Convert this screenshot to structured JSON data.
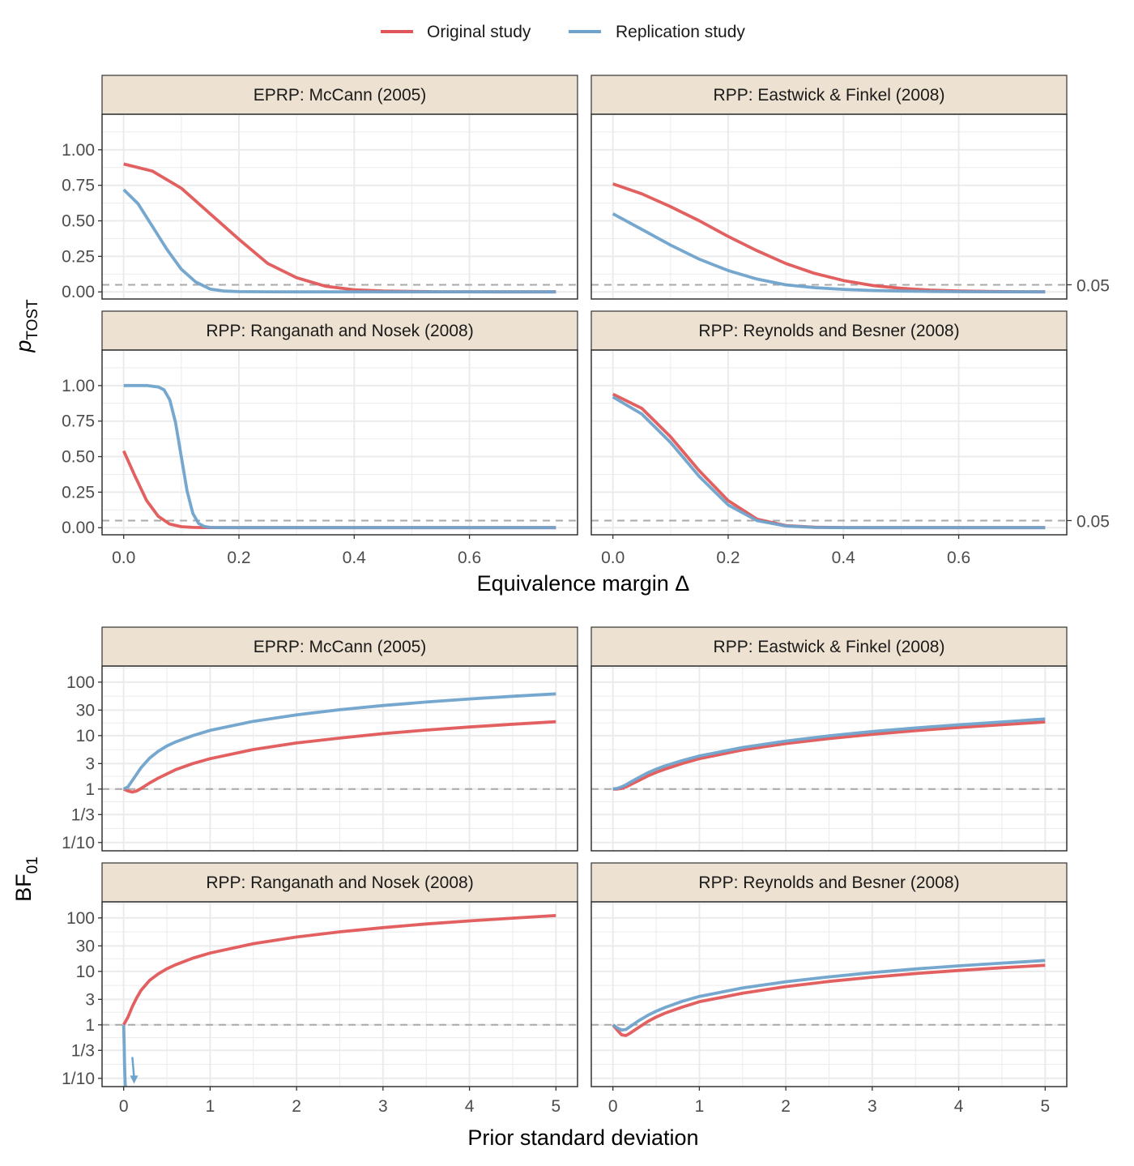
{
  "legend": {
    "items": [
      {
        "label": "Original study",
        "color": "#e15759"
      },
      {
        "label": "Replication study",
        "color": "#6fa3cc"
      }
    ]
  },
  "colors": {
    "original": "#e15759",
    "replication": "#6fa3cc",
    "strip": "#ede1d1",
    "reference": "#a9a9a9",
    "grid": "#ebebeb"
  },
  "chart_data": [
    {
      "type": "line",
      "section": "tost",
      "xlabel": "Equivalence margin Δ",
      "ylabel": {
        "main": "p",
        "sub": "TOST"
      },
      "xlim": [
        -0.0375,
        0.7875
      ],
      "ylim": [
        -0.05,
        1.25
      ],
      "x_ticks": [
        0.0,
        0.2,
        0.4,
        0.6
      ],
      "x_tick_labels": [
        "0.0",
        "0.2",
        "0.4",
        "0.6"
      ],
      "y_ticks": [
        0,
        0.25,
        0.5,
        0.75,
        1.0
      ],
      "y_tick_labels": [
        "0.00",
        "0.25",
        "0.50",
        "0.75",
        "1.00"
      ],
      "reference_line": 0.05,
      "reference_label": "0.05",
      "grid": true,
      "panels": [
        {
          "title": "EPRP: McCann (2005)",
          "series": [
            {
              "name": "Original study",
              "x": [
                0,
                0.05,
                0.1,
                0.15,
                0.2,
                0.25,
                0.3,
                0.35,
                0.4,
                0.45,
                0.5,
                0.55,
                0.6,
                0.65,
                0.7,
                0.75
              ],
              "y": [
                0.9,
                0.85,
                0.73,
                0.55,
                0.37,
                0.2,
                0.1,
                0.04,
                0.015,
                0.006,
                0.003,
                0.001,
                0.0005,
                0.0002,
                0.0001,
                0.0
              ]
            },
            {
              "name": "Replication study",
              "x": [
                0,
                0.025,
                0.05,
                0.075,
                0.1,
                0.125,
                0.15,
                0.175,
                0.2,
                0.25,
                0.3,
                0.4,
                0.5,
                0.6,
                0.75
              ],
              "y": [
                0.72,
                0.62,
                0.46,
                0.3,
                0.16,
                0.07,
                0.02,
                0.006,
                0.002,
                0.0005,
                0.0001,
                0,
                0,
                0,
                0
              ]
            }
          ]
        },
        {
          "title": "RPP: Eastwick & Finkel (2008)",
          "series": [
            {
              "name": "Original study",
              "x": [
                0,
                0.05,
                0.1,
                0.15,
                0.2,
                0.25,
                0.3,
                0.35,
                0.4,
                0.45,
                0.5,
                0.55,
                0.6,
                0.65,
                0.7,
                0.75
              ],
              "y": [
                0.76,
                0.69,
                0.6,
                0.5,
                0.39,
                0.29,
                0.2,
                0.13,
                0.08,
                0.045,
                0.025,
                0.013,
                0.006,
                0.003,
                0.0015,
                0.0
              ]
            },
            {
              "name": "Replication study",
              "x": [
                0,
                0.05,
                0.1,
                0.15,
                0.2,
                0.25,
                0.3,
                0.35,
                0.4,
                0.45,
                0.5,
                0.55,
                0.6,
                0.65,
                0.7,
                0.75
              ],
              "y": [
                0.55,
                0.44,
                0.33,
                0.23,
                0.15,
                0.09,
                0.05,
                0.03,
                0.018,
                0.01,
                0.006,
                0.003,
                0.0015,
                0.0008,
                0.0003,
                0.0
              ]
            }
          ]
        },
        {
          "title": "RPP: Ranganath and Nosek (2008)",
          "series": [
            {
              "name": "Original study",
              "x": [
                0,
                0.02,
                0.04,
                0.06,
                0.08,
                0.1,
                0.12,
                0.15,
                0.2,
                0.3,
                0.4,
                0.5,
                0.6,
                0.75
              ],
              "y": [
                0.54,
                0.36,
                0.19,
                0.08,
                0.025,
                0.007,
                0.002,
                0.0005,
                0,
                0,
                0,
                0,
                0,
                0
              ]
            },
            {
              "name": "Replication study",
              "x": [
                0,
                0.04,
                0.06,
                0.07,
                0.08,
                0.09,
                0.1,
                0.11,
                0.12,
                0.13,
                0.14,
                0.15,
                0.16,
                0.2,
                0.3,
                0.5,
                0.75
              ],
              "y": [
                1.0,
                1.0,
                0.99,
                0.97,
                0.9,
                0.74,
                0.5,
                0.26,
                0.1,
                0.03,
                0.008,
                0.002,
                0.0005,
                0,
                0,
                0,
                0
              ]
            }
          ]
        },
        {
          "title": "RPP: Reynolds and Besner (2008)",
          "series": [
            {
              "name": "Original study",
              "x": [
                0,
                0.05,
                0.1,
                0.15,
                0.2,
                0.25,
                0.3,
                0.35,
                0.4,
                0.45,
                0.5,
                0.55,
                0.6,
                0.65,
                0.7,
                0.75
              ],
              "y": [
                0.94,
                0.84,
                0.64,
                0.4,
                0.19,
                0.06,
                0.015,
                0.003,
                0.0006,
                0.0001,
                0,
                0,
                0,
                0,
                0,
                0
              ]
            },
            {
              "name": "Replication study",
              "x": [
                0,
                0.05,
                0.1,
                0.15,
                0.2,
                0.25,
                0.3,
                0.35,
                0.4,
                0.45,
                0.5,
                0.55,
                0.6,
                0.65,
                0.7,
                0.75
              ],
              "y": [
                0.92,
                0.8,
                0.6,
                0.36,
                0.16,
                0.05,
                0.012,
                0.002,
                0.0004,
                0.0001,
                0,
                0,
                0,
                0,
                0,
                0
              ]
            }
          ]
        }
      ]
    },
    {
      "type": "line",
      "section": "bf",
      "xlabel": "Prior standard deviation",
      "ylabel": {
        "main": "BF",
        "sub": "01"
      },
      "y_scale": "log",
      "xlim": [
        -0.25,
        5.25
      ],
      "ylim": [
        0.07,
        200
      ],
      "x_ticks": [
        0,
        1,
        2,
        3,
        4,
        5
      ],
      "x_tick_labels": [
        "0",
        "1",
        "2",
        "3",
        "4",
        "5"
      ],
      "y_ticks": [
        0.1,
        0.3333,
        1,
        3,
        10,
        30,
        100
      ],
      "y_tick_labels": [
        "1/10",
        "1/3",
        "1",
        "3",
        "10",
        "30",
        "100"
      ],
      "reference_line": 1,
      "grid": true,
      "panels": [
        {
          "title": "EPRP: McCann (2005)",
          "series": [
            {
              "name": "Original study",
              "x": [
                0,
                0.05,
                0.1,
                0.15,
                0.2,
                0.3,
                0.4,
                0.6,
                0.8,
                1,
                1.5,
                2,
                2.5,
                3,
                3.5,
                4,
                4.5,
                5
              ],
              "y": [
                1.0,
                0.92,
                0.88,
                0.92,
                1.02,
                1.3,
                1.6,
                2.3,
                3.0,
                3.7,
                5.5,
                7.3,
                9.0,
                10.9,
                12.7,
                14.5,
                16.3,
                18.2
              ]
            },
            {
              "name": "Replication study",
              "x": [
                0,
                0.05,
                0.1,
                0.15,
                0.2,
                0.3,
                0.4,
                0.5,
                0.6,
                0.8,
                1,
                1.5,
                2,
                2.5,
                3,
                3.5,
                4,
                4.5,
                5
              ],
              "y": [
                1.0,
                1.1,
                1.45,
                1.9,
                2.5,
                3.8,
                5.1,
                6.4,
                7.6,
                10.0,
                12.5,
                18.5,
                24.5,
                30.5,
                36.5,
                42.5,
                48.5,
                54.5,
                60.5
              ]
            }
          ]
        },
        {
          "title": "RPP: Eastwick & Finkel (2008)",
          "series": [
            {
              "name": "Original study",
              "x": [
                0,
                0.05,
                0.1,
                0.15,
                0.2,
                0.3,
                0.4,
                0.5,
                0.6,
                0.8,
                1,
                1.5,
                2,
                2.5,
                3,
                3.5,
                4,
                4.5,
                5
              ],
              "y": [
                1.0,
                1.0,
                1.03,
                1.1,
                1.2,
                1.45,
                1.75,
                2.05,
                2.35,
                3.0,
                3.7,
                5.4,
                7.1,
                8.8,
                10.6,
                12.4,
                14.2,
                16.0,
                18.0
              ]
            },
            {
              "name": "Replication study",
              "x": [
                0,
                0.05,
                0.1,
                0.15,
                0.2,
                0.3,
                0.4,
                0.5,
                0.6,
                0.8,
                1,
                1.5,
                2,
                2.5,
                3,
                3.5,
                4,
                4.5,
                5
              ],
              "y": [
                1.0,
                1.03,
                1.1,
                1.2,
                1.34,
                1.65,
                2.0,
                2.35,
                2.7,
                3.4,
                4.15,
                6.0,
                7.9,
                9.9,
                11.9,
                13.9,
                15.9,
                18.0,
                20.5
              ]
            }
          ]
        },
        {
          "title": "RPP: Ranganath and Nosek (2008)",
          "series": [
            {
              "name": "Original study",
              "x": [
                0,
                0.05,
                0.1,
                0.15,
                0.2,
                0.3,
                0.4,
                0.5,
                0.6,
                0.8,
                1,
                1.5,
                2,
                2.5,
                3,
                3.5,
                4,
                4.5,
                5
              ],
              "y": [
                1.0,
                1.4,
                2.2,
                3.2,
                4.4,
                6.8,
                9.0,
                11.2,
                13.3,
                17.7,
                22.0,
                33.0,
                44.0,
                55.0,
                66.0,
                77.0,
                88.0,
                99.0,
                111.0
              ]
            },
            {
              "name": "Replication study",
              "x": [
                0,
                0.005,
                0.01,
                0.015,
                0.02
              ],
              "y": [
                1.0,
                0.5,
                0.2,
                0.1,
                0.07
              ]
            }
          ],
          "annotation": {
            "type": "arrow",
            "color": "#6fa3cc",
            "from": [
              0.1,
              0.25
            ],
            "to": [
              0.12,
              0.085
            ]
          }
        },
        {
          "title": "RPP: Reynolds and Besner (2008)",
          "series": [
            {
              "name": "Original study",
              "x": [
                0,
                0.05,
                0.1,
                0.15,
                0.2,
                0.3,
                0.4,
                0.5,
                0.6,
                0.8,
                1,
                1.5,
                2,
                2.5,
                3,
                3.5,
                4,
                4.5,
                5
              ],
              "y": [
                1.0,
                0.8,
                0.65,
                0.63,
                0.7,
                0.9,
                1.15,
                1.4,
                1.65,
                2.15,
                2.7,
                3.9,
                5.2,
                6.5,
                7.8,
                9.1,
                10.4,
                11.7,
                13.0
              ]
            },
            {
              "name": "Replication study",
              "x": [
                0,
                0.05,
                0.1,
                0.15,
                0.2,
                0.3,
                0.4,
                0.5,
                0.6,
                0.8,
                1,
                1.5,
                2,
                2.5,
                3,
                3.5,
                4,
                4.5,
                5
              ],
              "y": [
                1.0,
                0.88,
                0.8,
                0.82,
                0.93,
                1.2,
                1.5,
                1.8,
                2.1,
                2.75,
                3.4,
                4.9,
                6.4,
                7.9,
                9.5,
                11.1,
                12.7,
                14.3,
                16.0
              ]
            }
          ]
        }
      ]
    }
  ]
}
